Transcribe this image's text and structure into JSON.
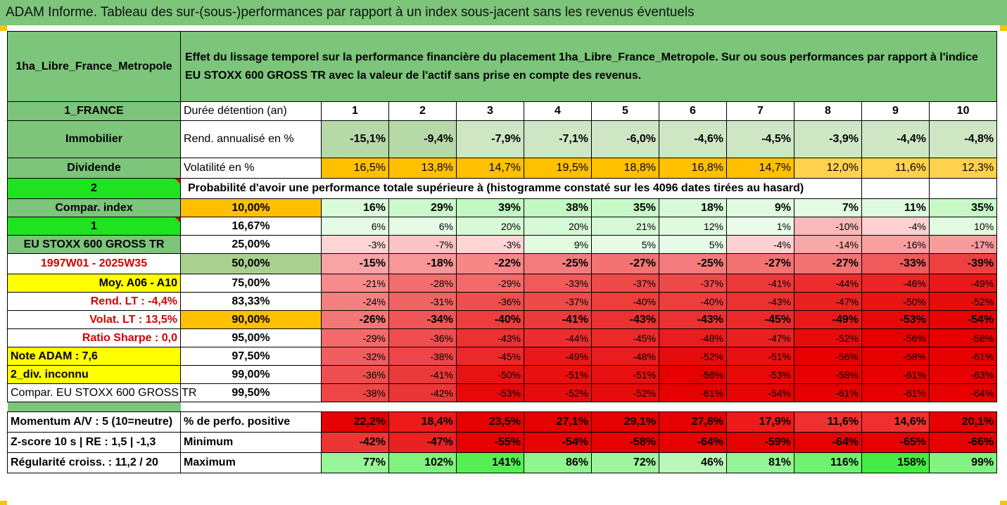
{
  "title": "ADAM Informe. Tableau des sur-(sous-)performances par rapport à un index sous-jacent sans les revenus éventuels",
  "header": {
    "asset": "1ha_Libre_France_Metropole",
    "description": "Effet du lissage temporel sur la performance financière du placement 1ha_Libre_France_Metropole. Sur ou sous performances par rapport à l'indice EU STOXX 600 GROSS TR avec la valeur de l'actif sans prise en compte des revenus."
  },
  "colors": {
    "header_green": "#7cc57a",
    "orange": "#ffc000",
    "yellow": "#ffff00",
    "bright_green": "#1fe31f",
    "red_text": "#d40000"
  },
  "side": {
    "country": "1_FRANCE",
    "category": "Immobilier",
    "dividend": "Dividende",
    "code2": "2",
    "compar_index": "Compar. index",
    "code1": "1",
    "index_name": "EU STOXX 600 GROSS TR",
    "period": "1997W01 - 2025W35",
    "moy": "Moy. A06 - A10",
    "rend_lt": "Rend. LT :   -4,4%",
    "volat_lt": "Volat. LT :   13,5%",
    "sharpe": "Ratio Sharpe :   0,0",
    "note": "Note ADAM : 7,6",
    "div": "2_div. inconnu",
    "compar_full": "Compar. EU STOXX 600 GROSS TR",
    "momentum": "Momentum A/V : 5 (10=neutre)",
    "zscore": "Z-score 10 s  |  RE : 1,5  |  -1,3",
    "regularite": "Régularité croiss. : 11,2 / 20"
  },
  "labels": {
    "duree": "Durée détention (an)",
    "rend": "Rend. annualisé en %",
    "volat": "Volatilité en %",
    "proba": "Probabilité d'avoir une performance totale supérieure à (histogramme constaté sur les 4096 dates tirées au hasard)",
    "perfo_pos": "% de perfo. positive",
    "minimum": "Minimum",
    "maximum": "Maximum"
  },
  "years": [
    "1",
    "2",
    "3",
    "4",
    "5",
    "6",
    "7",
    "8",
    "9",
    "10"
  ],
  "rend": [
    "-15,1%",
    "-9,4%",
    "-7,9%",
    "-7,1%",
    "-6,0%",
    "-4,6%",
    "-4,5%",
    "-3,9%",
    "-4,4%",
    "-4,8%"
  ],
  "volat": [
    "16,5%",
    "13,8%",
    "14,7%",
    "19,5%",
    "18,8%",
    "16,8%",
    "14,7%",
    "12,0%",
    "11,6%",
    "12,3%"
  ],
  "quantile_rows": [
    {
      "q": "10,00%",
      "v": [
        "16%",
        "29%",
        "39%",
        "38%",
        "35%",
        "18%",
        "9%",
        "7%",
        "11%",
        "35%"
      ]
    },
    {
      "q": "16,67%",
      "v": [
        "6%",
        "6%",
        "20%",
        "20%",
        "21%",
        "12%",
        "1%",
        "-10%",
        "-4%",
        "10%"
      ]
    },
    {
      "q": "25,00%",
      "v": [
        "-3%",
        "-7%",
        "-3%",
        "9%",
        "5%",
        "5%",
        "-4%",
        "-14%",
        "-16%",
        "-17%"
      ]
    },
    {
      "q": "50,00%",
      "v": [
        "-15%",
        "-18%",
        "-22%",
        "-25%",
        "-27%",
        "-25%",
        "-27%",
        "-27%",
        "-33%",
        "-39%"
      ]
    },
    {
      "q": "75,00%",
      "v": [
        "-21%",
        "-28%",
        "-29%",
        "-33%",
        "-37%",
        "-37%",
        "-41%",
        "-44%",
        "-46%",
        "-49%"
      ]
    },
    {
      "q": "83,33%",
      "v": [
        "-24%",
        "-31%",
        "-36%",
        "-37%",
        "-40%",
        "-40%",
        "-43%",
        "-47%",
        "-50%",
        "-52%"
      ]
    },
    {
      "q": "90,00%",
      "v": [
        "-26%",
        "-34%",
        "-40%",
        "-41%",
        "-43%",
        "-43%",
        "-45%",
        "-49%",
        "-53%",
        "-54%"
      ]
    },
    {
      "q": "95,00%",
      "v": [
        "-29%",
        "-36%",
        "-43%",
        "-44%",
        "-45%",
        "-48%",
        "-47%",
        "-52%",
        "-56%",
        "-58%"
      ]
    },
    {
      "q": "97,50%",
      "v": [
        "-32%",
        "-38%",
        "-45%",
        "-49%",
        "-48%",
        "-52%",
        "-51%",
        "-56%",
        "-58%",
        "-61%"
      ]
    },
    {
      "q": "99,00%",
      "v": [
        "-36%",
        "-41%",
        "-50%",
        "-51%",
        "-51%",
        "-56%",
        "-53%",
        "-58%",
        "-61%",
        "-63%"
      ]
    },
    {
      "q": "99,50%",
      "v": [
        "-38%",
        "-42%",
        "-53%",
        "-52%",
        "-52%",
        "-61%",
        "-54%",
        "-61%",
        "-61%",
        "-64%"
      ]
    }
  ],
  "perfo_pos": [
    "22,2%",
    "18,4%",
    "23,5%",
    "27,1%",
    "29,1%",
    "27,8%",
    "17,9%",
    "11,6%",
    "14,6%",
    "20,1%"
  ],
  "minimum": [
    "-42%",
    "-47%",
    "-55%",
    "-54%",
    "-58%",
    "-64%",
    "-59%",
    "-64%",
    "-65%",
    "-66%"
  ],
  "maximum": [
    "77%",
    "102%",
    "141%",
    "86%",
    "72%",
    "46%",
    "81%",
    "116%",
    "158%",
    "99%"
  ]
}
